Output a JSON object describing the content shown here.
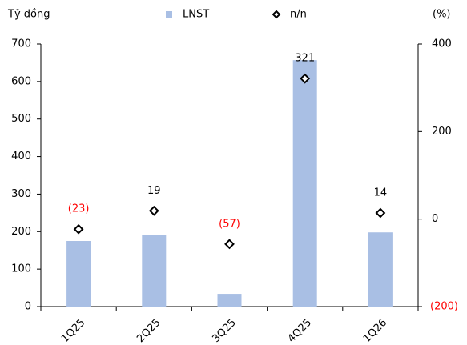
{
  "chart_data": {
    "type": "combo",
    "y_label": "Tỷ đồng",
    "y2_label": "(%)",
    "categories": [
      "1Q25",
      "2Q25",
      "3Q25",
      "4Q25",
      "1Q26"
    ],
    "series": [
      {
        "name": "LNST",
        "type": "bar",
        "color": "#a9bfe4",
        "values": [
          175,
          192,
          34,
          657,
          198
        ]
      },
      {
        "name": "n/n",
        "type": "scatter",
        "axis": "y2",
        "color": "#000000",
        "values": [
          -23,
          19,
          -57,
          321,
          14
        ],
        "value_labels": [
          "(23)",
          "19",
          "(57)",
          "321",
          "14"
        ]
      }
    ],
    "ylim": [
      0,
      700
    ],
    "yticks": [
      0,
      100,
      200,
      300,
      400,
      500,
      600,
      700
    ],
    "y2lim": [
      -200,
      400
    ],
    "y2ticks": [
      {
        "value": -200,
        "label": "(200)"
      },
      0,
      200,
      400
    ],
    "negative_color": "#ff0000"
  }
}
